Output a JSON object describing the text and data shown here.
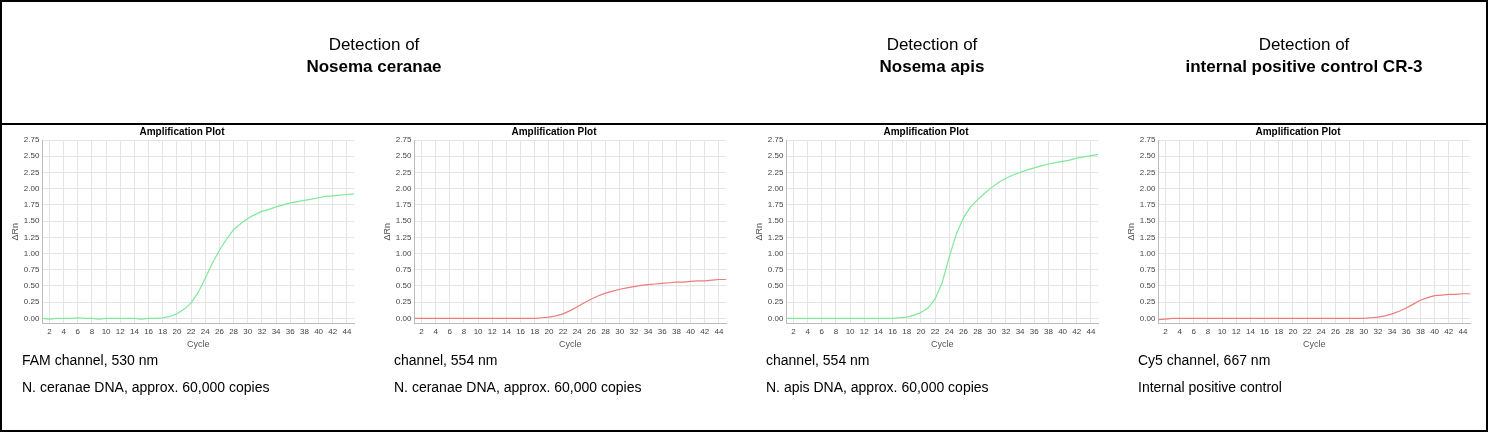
{
  "chart_data": [
    {
      "type": "line",
      "subtitle": "Detection of\nNosema ceranae",
      "title": "Amplification Plot",
      "xlabel": "Cycle",
      "ylabel": "ΔRn",
      "x": [
        1,
        2,
        3,
        4,
        5,
        6,
        7,
        8,
        9,
        10,
        11,
        12,
        13,
        14,
        15,
        16,
        17,
        18,
        19,
        20,
        21,
        22,
        23,
        24,
        25,
        26,
        27,
        28,
        29,
        30,
        31,
        32,
        33,
        34,
        35,
        36,
        37,
        38,
        39,
        40,
        41,
        42,
        43,
        44,
        45
      ],
      "series": [
        {
          "color": "#7fe89a",
          "values": [
            0,
            -0.01,
            0,
            0,
            0,
            0.01,
            0,
            0,
            -0.01,
            0,
            0,
            0,
            0,
            0,
            -0.01,
            0,
            0,
            0.01,
            0.03,
            0.07,
            0.14,
            0.24,
            0.4,
            0.62,
            0.85,
            1.05,
            1.22,
            1.37,
            1.46,
            1.54,
            1.6,
            1.65,
            1.68,
            1.72,
            1.75,
            1.78,
            1.8,
            1.82,
            1.84,
            1.86,
            1.88,
            1.89,
            1.9,
            1.91,
            1.92
          ]
        }
      ],
      "xlim": [
        1,
        45
      ],
      "xticks": [
        2,
        4,
        6,
        8,
        10,
        12,
        14,
        16,
        18,
        20,
        22,
        24,
        26,
        28,
        30,
        32,
        34,
        36,
        38,
        40,
        42,
        44
      ],
      "ylim": [
        -0.08,
        2.75
      ],
      "yticks": [
        {
          "value": 0,
          "label": "0.00"
        },
        {
          "value": 0.25,
          "label": "0.25"
        },
        {
          "value": 0.5,
          "label": "0.50"
        },
        {
          "value": 0.75,
          "label": "0.75"
        },
        {
          "value": 1,
          "label": "1.00"
        },
        {
          "value": 1.25,
          "label": "1.25"
        },
        {
          "value": 1.5,
          "label": "1.50"
        },
        {
          "value": 1.75,
          "label": "1.75"
        },
        {
          "value": 2,
          "label": "2.00"
        },
        {
          "value": 2.25,
          "label": "2.25"
        },
        {
          "value": 2.5,
          "label": "2.50"
        },
        {
          "value": 2.75,
          "label": "2.75"
        }
      ],
      "grid": true,
      "legend": false,
      "marker": "none",
      "line_style": "solid",
      "annotations": [
        "FAM channel, 530 nm",
        "N. ceranae DNA, approx. 60,000 copies"
      ]
    },
    {
      "type": "line",
      "title": "Amplification Plot",
      "xlabel": "Cycle",
      "ylabel": "ΔRn",
      "x": [
        1,
        2,
        3,
        4,
        5,
        6,
        7,
        8,
        9,
        10,
        11,
        12,
        13,
        14,
        15,
        16,
        17,
        18,
        19,
        20,
        21,
        22,
        23,
        24,
        25,
        26,
        27,
        28,
        29,
        30,
        31,
        32,
        33,
        34,
        35,
        36,
        37,
        38,
        39,
        40,
        41,
        42,
        43,
        44,
        45
      ],
      "series": [
        {
          "color": "#f07b7b",
          "values": [
            0,
            0,
            0,
            0,
            0,
            0,
            0,
            0,
            0,
            0,
            0,
            0,
            0,
            0,
            0,
            0,
            0,
            0,
            0.01,
            0.02,
            0.04,
            0.07,
            0.12,
            0.18,
            0.24,
            0.3,
            0.35,
            0.39,
            0.42,
            0.45,
            0.47,
            0.49,
            0.51,
            0.52,
            0.53,
            0.54,
            0.55,
            0.56,
            0.56,
            0.57,
            0.58,
            0.58,
            0.59,
            0.6,
            0.6
          ]
        }
      ],
      "xlim": [
        1,
        45
      ],
      "xticks": [
        2,
        4,
        6,
        8,
        10,
        12,
        14,
        16,
        18,
        20,
        22,
        24,
        26,
        28,
        30,
        32,
        34,
        36,
        38,
        40,
        42,
        44
      ],
      "ylim": [
        -0.08,
        2.75
      ],
      "yticks": [
        {
          "value": 0,
          "label": "0.00"
        },
        {
          "value": 0.25,
          "label": "0.25"
        },
        {
          "value": 0.5,
          "label": "0.50"
        },
        {
          "value": 0.75,
          "label": "0.75"
        },
        {
          "value": 1,
          "label": "1.00"
        },
        {
          "value": 1.25,
          "label": "1.25"
        },
        {
          "value": 1.5,
          "label": "1.50"
        },
        {
          "value": 1.75,
          "label": "1.75"
        },
        {
          "value": 2,
          "label": "2.00"
        },
        {
          "value": 2.25,
          "label": "2.25"
        },
        {
          "value": 2.5,
          "label": "2.50"
        },
        {
          "value": 2.75,
          "label": "2.75"
        }
      ],
      "grid": true,
      "legend": false,
      "marker": "none",
      "line_style": "solid",
      "annotations": [
        "channel, 554 nm",
        "N. ceranae DNA, approx. 60,000 copies"
      ]
    },
    {
      "type": "line",
      "subtitle": "Detection of\nNosema apis",
      "title": "Amplification Plot",
      "xlabel": "Cycle",
      "ylabel": "ΔRn",
      "x": [
        1,
        2,
        3,
        4,
        5,
        6,
        7,
        8,
        9,
        10,
        11,
        12,
        13,
        14,
        15,
        16,
        17,
        18,
        19,
        20,
        21,
        22,
        23,
        24,
        25,
        26,
        27,
        28,
        29,
        30,
        31,
        32,
        33,
        34,
        35,
        36,
        37,
        38,
        39,
        40,
        41,
        42,
        43,
        44,
        45
      ],
      "series": [
        {
          "color": "#7fe89a",
          "values": [
            0,
            0,
            0,
            0,
            0,
            0,
            0,
            0,
            0,
            0,
            0,
            0,
            0,
            0,
            0,
            0,
            0.01,
            0.02,
            0.05,
            0.09,
            0.16,
            0.3,
            0.55,
            0.95,
            1.3,
            1.55,
            1.72,
            1.83,
            1.93,
            2.02,
            2.1,
            2.16,
            2.21,
            2.25,
            2.29,
            2.32,
            2.35,
            2.38,
            2.4,
            2.42,
            2.44,
            2.47,
            2.49,
            2.51,
            2.53
          ]
        }
      ],
      "xlim": [
        1,
        45
      ],
      "xticks": [
        2,
        4,
        6,
        8,
        10,
        12,
        14,
        16,
        18,
        20,
        22,
        24,
        26,
        28,
        30,
        32,
        34,
        36,
        38,
        40,
        42,
        44
      ],
      "ylim": [
        -0.08,
        2.75
      ],
      "yticks": [
        {
          "value": 0,
          "label": "0.00"
        },
        {
          "value": 0.25,
          "label": "0.25"
        },
        {
          "value": 0.5,
          "label": "0.50"
        },
        {
          "value": 0.75,
          "label": "0.75"
        },
        {
          "value": 1,
          "label": "1.00"
        },
        {
          "value": 1.25,
          "label": "1.25"
        },
        {
          "value": 1.5,
          "label": "1.50"
        },
        {
          "value": 1.75,
          "label": "1.75"
        },
        {
          "value": 2,
          "label": "2.00"
        },
        {
          "value": 2.25,
          "label": "2.25"
        },
        {
          "value": 2.5,
          "label": "2.50"
        },
        {
          "value": 2.75,
          "label": "2.75"
        }
      ],
      "grid": true,
      "legend": false,
      "marker": "none",
      "line_style": "solid",
      "annotations": [
        "channel, 554 nm",
        "N. apis DNA, approx. 60,000 copies"
      ]
    },
    {
      "type": "line",
      "subtitle": "Detection of\ninternal positive control CR-3",
      "title": "Amplification Plot",
      "xlabel": "Cycle",
      "ylabel": "ΔRn",
      "x": [
        1,
        2,
        3,
        4,
        5,
        6,
        7,
        8,
        9,
        10,
        11,
        12,
        13,
        14,
        15,
        16,
        17,
        18,
        19,
        20,
        21,
        22,
        23,
        24,
        25,
        26,
        27,
        28,
        29,
        30,
        31,
        32,
        33,
        34,
        35,
        36,
        37,
        38,
        39,
        40,
        41,
        42,
        43,
        44,
        45
      ],
      "series": [
        {
          "color": "#f07b7b",
          "values": [
            -0.02,
            -0.01,
            0,
            0,
            0,
            0,
            0,
            0,
            0,
            0,
            0,
            0,
            0,
            0,
            0,
            0,
            0,
            0,
            0,
            0,
            0,
            0,
            0,
            0,
            0,
            0,
            0,
            0,
            0,
            0,
            0.01,
            0.02,
            0.04,
            0.07,
            0.11,
            0.16,
            0.22,
            0.28,
            0.32,
            0.35,
            0.36,
            0.37,
            0.37,
            0.38,
            0.38
          ]
        }
      ],
      "xlim": [
        1,
        45
      ],
      "xticks": [
        2,
        4,
        6,
        8,
        10,
        12,
        14,
        16,
        18,
        20,
        22,
        24,
        26,
        28,
        30,
        32,
        34,
        36,
        38,
        40,
        42,
        44
      ],
      "ylim": [
        -0.08,
        2.75
      ],
      "yticks": [
        {
          "value": 0,
          "label": "0.00"
        },
        {
          "value": 0.25,
          "label": "0.25"
        },
        {
          "value": 0.5,
          "label": "0.50"
        },
        {
          "value": 0.75,
          "label": "0.75"
        },
        {
          "value": 1,
          "label": "1.00"
        },
        {
          "value": 1.25,
          "label": "1.25"
        },
        {
          "value": 1.5,
          "label": "1.50"
        },
        {
          "value": 1.75,
          "label": "1.75"
        },
        {
          "value": 2,
          "label": "2.00"
        },
        {
          "value": 2.25,
          "label": "2.25"
        },
        {
          "value": 2.5,
          "label": "2.50"
        },
        {
          "value": 2.75,
          "label": "2.75"
        }
      ],
      "grid": true,
      "legend": false,
      "marker": "none",
      "line_style": "solid",
      "annotations": [
        "Cy5 channel, 667 nm",
        "Internal positive control"
      ]
    }
  ]
}
